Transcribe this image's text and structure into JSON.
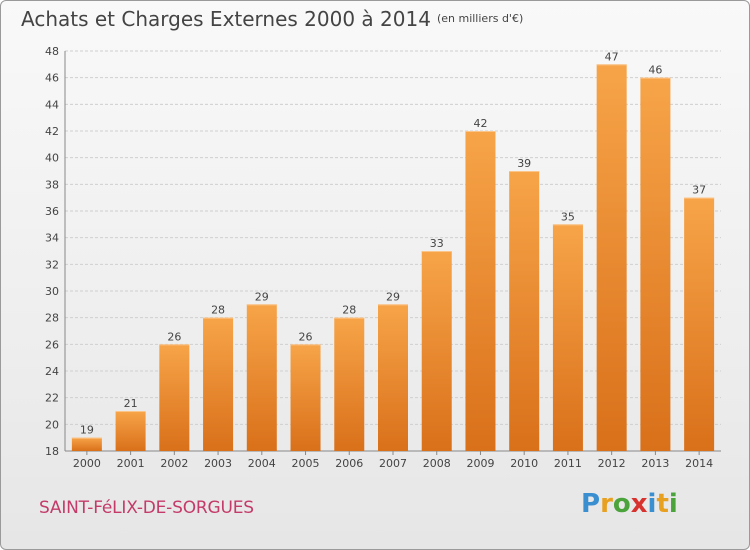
{
  "title": "Achats et Charges Externes 2000 à 2014",
  "subtitle": "(en milliers d'€)",
  "commune": "SAINT-FéLIX-DE-SORGUES",
  "logo": {
    "letters": [
      "P",
      "r",
      "o",
      "x",
      "i",
      "t",
      "i"
    ],
    "colors": [
      "#3a8fd0",
      "#e8a020",
      "#4aa33b",
      "#d8322e",
      "#3a8fd0",
      "#e8a020",
      "#4aa33b"
    ]
  },
  "colors": {
    "bar": "#f08a2a",
    "bar_light": "#f7a85a",
    "grid": "#cfcfcf",
    "text": "#444444"
  },
  "chart_data": {
    "type": "bar",
    "categories": [
      "2000",
      "2001",
      "2002",
      "2003",
      "2004",
      "2005",
      "2006",
      "2007",
      "2008",
      "2009",
      "2010",
      "2011",
      "2012",
      "2013",
      "2014"
    ],
    "values": [
      19,
      21,
      26,
      28,
      29,
      26,
      28,
      29,
      33,
      42,
      39,
      35,
      47,
      46,
      37
    ],
    "ylim": [
      18,
      48
    ],
    "yticks": [
      18,
      20,
      22,
      24,
      26,
      28,
      30,
      32,
      34,
      36,
      38,
      40,
      42,
      44,
      46,
      48
    ],
    "grid": true
  }
}
